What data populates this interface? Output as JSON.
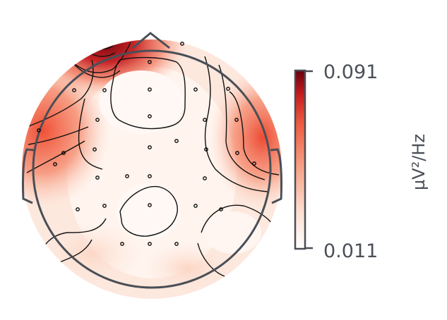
{
  "colorbar": {
    "max_label": "0.091",
    "min_label": "0.011",
    "unit": "µV²/Hz",
    "colors": [
      "#ffffff",
      "#fdd5c2",
      "#f8a387",
      "#ef5b3f",
      "#c71a1e",
      "#67000d"
    ]
  },
  "topomap": {
    "outline_color": "#4a4f57",
    "contour_color": "#111111",
    "sensor_count": 32
  }
}
